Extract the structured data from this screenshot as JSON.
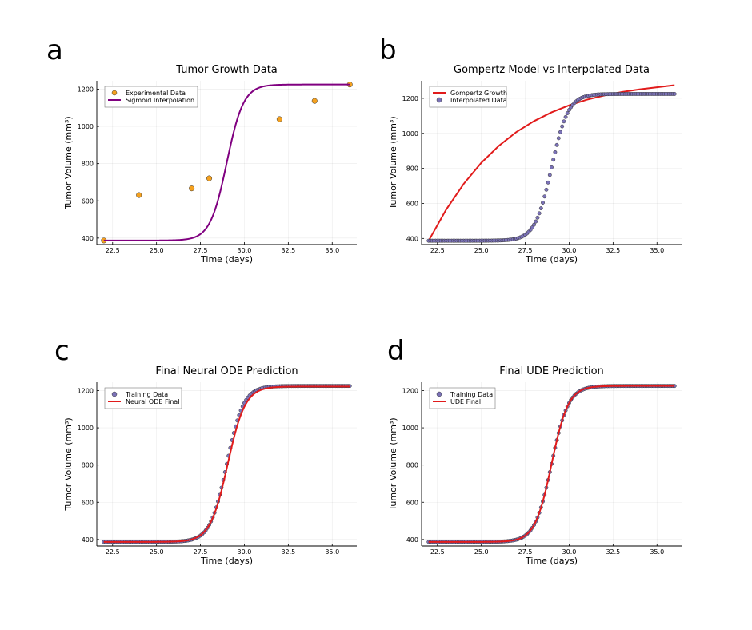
{
  "chart_data": [
    {
      "panel": "a",
      "type": "scatter",
      "title": "Tumor Growth Data",
      "xlabel": "Time (days)",
      "ylabel": "Tumor Volume (mm³)",
      "xlim": [
        21.6,
        36.4
      ],
      "ylim": [
        365,
        1245
      ],
      "xticks": [
        22.5,
        25.0,
        27.5,
        30.0,
        32.5,
        35.0
      ],
      "yticks": [
        400,
        600,
        800,
        1000,
        1200
      ],
      "grid": true,
      "legend_position": "top-left",
      "series": [
        {
          "name": "Experimental Data",
          "kind": "scatter",
          "color": "#f5a11f",
          "x": [
            22,
            24,
            27,
            28,
            32,
            34,
            36
          ],
          "y": [
            387,
            631,
            667,
            721,
            1039,
            1137,
            1225
          ]
        },
        {
          "name": "Sigmoid Interpolation",
          "kind": "line",
          "color": "#800080",
          "curve": {
            "low": 387,
            "high": 1225,
            "mid": 29.0,
            "steepness": 2.1,
            "x_start": 22,
            "x_end": 36
          }
        }
      ]
    },
    {
      "panel": "b",
      "type": "line",
      "title": "Gompertz Model vs Interpolated Data",
      "xlabel": "Time (days)",
      "ylabel": "Tumor Volume (mm³)",
      "xlim": [
        21.6,
        36.4
      ],
      "ylim": [
        365,
        1300
      ],
      "xticks": [
        22.5,
        25.0,
        27.5,
        30.0,
        32.5,
        35.0
      ],
      "yticks": [
        400,
        600,
        800,
        1000,
        1200
      ],
      "grid": true,
      "legend_position": "top-left",
      "series": [
        {
          "name": "Gompertz Growth",
          "kind": "line",
          "color": "#e11b1b",
          "x": [
            22,
            23,
            24,
            25,
            26,
            27,
            28,
            29,
            30,
            31,
            32,
            33,
            34,
            35,
            36
          ],
          "y": [
            387,
            565,
            712,
            832,
            929,
            1008,
            1070,
            1120,
            1160,
            1192,
            1216,
            1236,
            1251,
            1263,
            1275
          ]
        },
        {
          "name": "Interpolated Data",
          "kind": "scatter",
          "color": "#7b72b8",
          "curve": {
            "low": 387,
            "high": 1225,
            "mid": 29.0,
            "steepness": 2.1,
            "x_start": 22,
            "x_end": 36,
            "points": 141
          }
        }
      ]
    },
    {
      "panel": "c",
      "type": "line",
      "title": "Final Neural ODE Prediction",
      "xlabel": "Time (days)",
      "ylabel": "Tumor Volume (mm³)",
      "xlim": [
        21.6,
        36.4
      ],
      "ylim": [
        365,
        1245
      ],
      "xticks": [
        22.5,
        25.0,
        27.5,
        30.0,
        32.5,
        35.0
      ],
      "yticks": [
        400,
        600,
        800,
        1000,
        1200
      ],
      "grid": true,
      "legend_position": "top-left",
      "series": [
        {
          "name": "Training Data",
          "kind": "scatter",
          "color": "#7b72b8",
          "curve": {
            "low": 387,
            "high": 1225,
            "mid": 29.0,
            "steepness": 2.1,
            "x_start": 22,
            "x_end": 36,
            "points": 141
          }
        },
        {
          "name": "Neural ODE Final",
          "kind": "line",
          "color": "#e11b1b",
          "curve": {
            "low": 387,
            "high": 1222,
            "mid": 29.05,
            "steepness": 2.0,
            "x_start": 22,
            "x_end": 36
          }
        }
      ]
    },
    {
      "panel": "d",
      "type": "line",
      "title": "Final UDE Prediction",
      "xlabel": "Time (days)",
      "ylabel": "Tumor Volume (mm³)",
      "xlim": [
        21.6,
        36.4
      ],
      "ylim": [
        365,
        1245
      ],
      "xticks": [
        22.5,
        25.0,
        27.5,
        30.0,
        32.5,
        35.0
      ],
      "yticks": [
        400,
        600,
        800,
        1000,
        1200
      ],
      "grid": true,
      "legend_position": "top-left",
      "series": [
        {
          "name": "Training Data",
          "kind": "scatter",
          "color": "#7b72b8",
          "curve": {
            "low": 387,
            "high": 1225,
            "mid": 29.0,
            "steepness": 2.1,
            "x_start": 22,
            "x_end": 36,
            "points": 141
          }
        },
        {
          "name": "UDE Final",
          "kind": "line",
          "color": "#e11b1b",
          "curve": {
            "low": 387,
            "high": 1225,
            "mid": 29.0,
            "steepness": 2.1,
            "x_start": 22,
            "x_end": 36
          }
        }
      ]
    }
  ]
}
